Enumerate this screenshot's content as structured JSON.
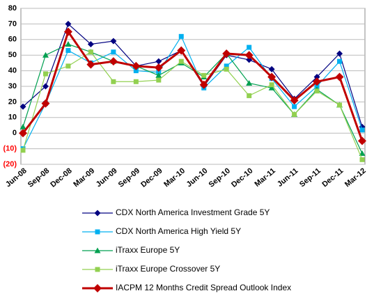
{
  "chart_data": {
    "type": "line",
    "categories": [
      "Jun-08",
      "Sep-08",
      "Dec-08",
      "Mar-09",
      "Jun-09",
      "Sep-09",
      "Dec-09",
      "Mar-10",
      "Jun-10",
      "Sep-10",
      "Dec-10",
      "Mar-11",
      "Jun-11",
      "Sep-11",
      "Dec-11",
      "Mar-12"
    ],
    "series": [
      {
        "name": "CDX North America Investment Grade 5Y",
        "color": "#000080",
        "marker": "diamond",
        "values": [
          17,
          30,
          70,
          57,
          59,
          43,
          46,
          53,
          30,
          50,
          47,
          41,
          22,
          36,
          51,
          4
        ]
      },
      {
        "name": "CDX North America High Yield 5Y",
        "color": "#00b0f0",
        "marker": "square",
        "values": [
          -10,
          19,
          53,
          45,
          52,
          40,
          39,
          62,
          29,
          43,
          55,
          35,
          17,
          30,
          46,
          2
        ]
      },
      {
        "name": "iTraxx Europe 5Y",
        "color": "#00a050",
        "marker": "triangle",
        "values": [
          4,
          50,
          57,
          52,
          46,
          43,
          37,
          45,
          36,
          51,
          32,
          29,
          12,
          28,
          18,
          -13
        ]
      },
      {
        "name": "iTraxx Europe Crossover 5Y",
        "color": "#92d050",
        "marker": "square",
        "values": [
          -11,
          38,
          43,
          52,
          33,
          33,
          34,
          46,
          37,
          41,
          24,
          31,
          12,
          27,
          18,
          -17
        ]
      },
      {
        "name": "IACPM 12 Months Credit Spread Outlook Index",
        "color": "#c00000",
        "marker": "diamond",
        "values": [
          0,
          19,
          65,
          44,
          46,
          43,
          42,
          53,
          31,
          51,
          50,
          36,
          21,
          33,
          36,
          -5
        ]
      }
    ],
    "ylim": [
      -20,
      80
    ],
    "yticks": [
      {
        "value": -20,
        "label": "(20)"
      },
      {
        "value": -10,
        "label": "(10)"
      },
      0,
      10,
      20,
      30,
      40,
      50,
      60,
      70,
      80
    ],
    "negative_tick_color": "#ff0000",
    "grid": true,
    "legend": "bottom"
  }
}
